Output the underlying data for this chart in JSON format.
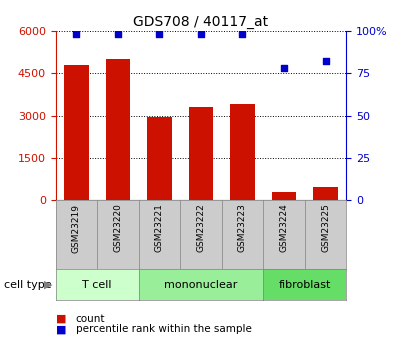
{
  "title": "GDS708 / 40117_at",
  "samples": [
    "GSM23219",
    "GSM23220",
    "GSM23221",
    "GSM23222",
    "GSM23223",
    "GSM23224",
    "GSM23225"
  ],
  "counts": [
    4800,
    5000,
    2950,
    3300,
    3400,
    300,
    450
  ],
  "percentiles": [
    98,
    98,
    98,
    98,
    98,
    78,
    82
  ],
  "cell_types": [
    {
      "label": "T cell",
      "start": 0,
      "end": 2,
      "color": "#ccffcc"
    },
    {
      "label": "mononuclear",
      "start": 2,
      "end": 5,
      "color": "#99ee99"
    },
    {
      "label": "fibroblast",
      "start": 5,
      "end": 7,
      "color": "#66dd66"
    }
  ],
  "bar_color": "#cc1100",
  "dot_color": "#0000cc",
  "left_ylim": [
    0,
    6000
  ],
  "left_yticks": [
    0,
    1500,
    3000,
    4500,
    6000
  ],
  "right_ylim": [
    0,
    100
  ],
  "right_yticks": [
    0,
    25,
    50,
    75,
    100
  ],
  "right_yticklabels": [
    "0",
    "25",
    "50",
    "75",
    "100%"
  ],
  "background_color": "#ffffff",
  "sample_box_color": "#cccccc",
  "cell_type_label": "cell type",
  "legend_count": "count",
  "legend_percentile": "percentile rank within the sample"
}
